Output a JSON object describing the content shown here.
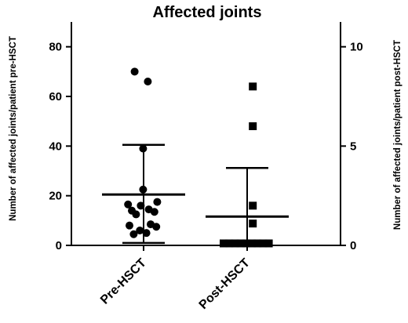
{
  "chart_data": {
    "type": "scatter",
    "title": "Affected joints",
    "categories": [
      "Pre-HSCT",
      "Post-HSCT"
    ],
    "left_axis": {
      "label": "Number of affected joints/patient pre-HSCT",
      "range": [
        0,
        90
      ],
      "ticks": [
        0,
        20,
        40,
        60,
        80
      ],
      "tick_labels": [
        "0",
        "20",
        "40",
        "60",
        "80"
      ]
    },
    "right_axis": {
      "label": "Number of affected joints/patient post-HSCT",
      "range": [
        0,
        11.25
      ],
      "ticks": [
        0,
        5,
        10
      ],
      "tick_labels": [
        "0",
        "5",
        "10"
      ]
    },
    "series": [
      {
        "category": "Pre-HSCT",
        "axis": "left",
        "marker": "circle",
        "mean": 20.5,
        "error_bar": [
          1,
          40.5
        ],
        "points": [
          {
            "dx": -0.19,
            "y": 70
          },
          {
            "dx": 0.09,
            "y": 66
          },
          {
            "dx": -0.01,
            "y": 39
          },
          {
            "dx": -0.01,
            "y": 22.5
          },
          {
            "dx": -0.33,
            "y": 16.5
          },
          {
            "dx": -0.06,
            "y": 16
          },
          {
            "dx": 0.29,
            "y": 17.5
          },
          {
            "dx": -0.25,
            "y": 14
          },
          {
            "dx": 0.11,
            "y": 14.5
          },
          {
            "dx": -0.16,
            "y": 12.5
          },
          {
            "dx": 0.23,
            "y": 13.5
          },
          {
            "dx": -0.3,
            "y": 8
          },
          {
            "dx": 0.15,
            "y": 8.5
          },
          {
            "dx": 0.27,
            "y": 7.5
          },
          {
            "dx": -0.08,
            "y": 6
          },
          {
            "dx": -0.21,
            "y": 4.5
          },
          {
            "dx": 0.06,
            "y": 5
          }
        ]
      },
      {
        "category": "Post-HSCT",
        "axis": "right",
        "marker": "square",
        "mean": 1.45,
        "error_bar": [
          0,
          3.9
        ],
        "points": [
          {
            "dx": 0.12,
            "y": 8
          },
          {
            "dx": 0.12,
            "y": 6
          },
          {
            "dx": 0.12,
            "y": 2
          },
          {
            "dx": 0.12,
            "y": 1.1
          },
          {
            "dx": -0.5,
            "y": 0.1
          },
          {
            "dx": -0.38,
            "y": 0.1
          },
          {
            "dx": -0.26,
            "y": 0.1
          },
          {
            "dx": -0.14,
            "y": 0.1
          },
          {
            "dx": -0.02,
            "y": 0.1
          },
          {
            "dx": 0.1,
            "y": 0.1
          },
          {
            "dx": 0.22,
            "y": 0.1
          },
          {
            "dx": 0.34,
            "y": 0.1
          },
          {
            "dx": 0.46,
            "y": 0.1
          }
        ]
      }
    ],
    "grid": false,
    "legend": "none"
  }
}
